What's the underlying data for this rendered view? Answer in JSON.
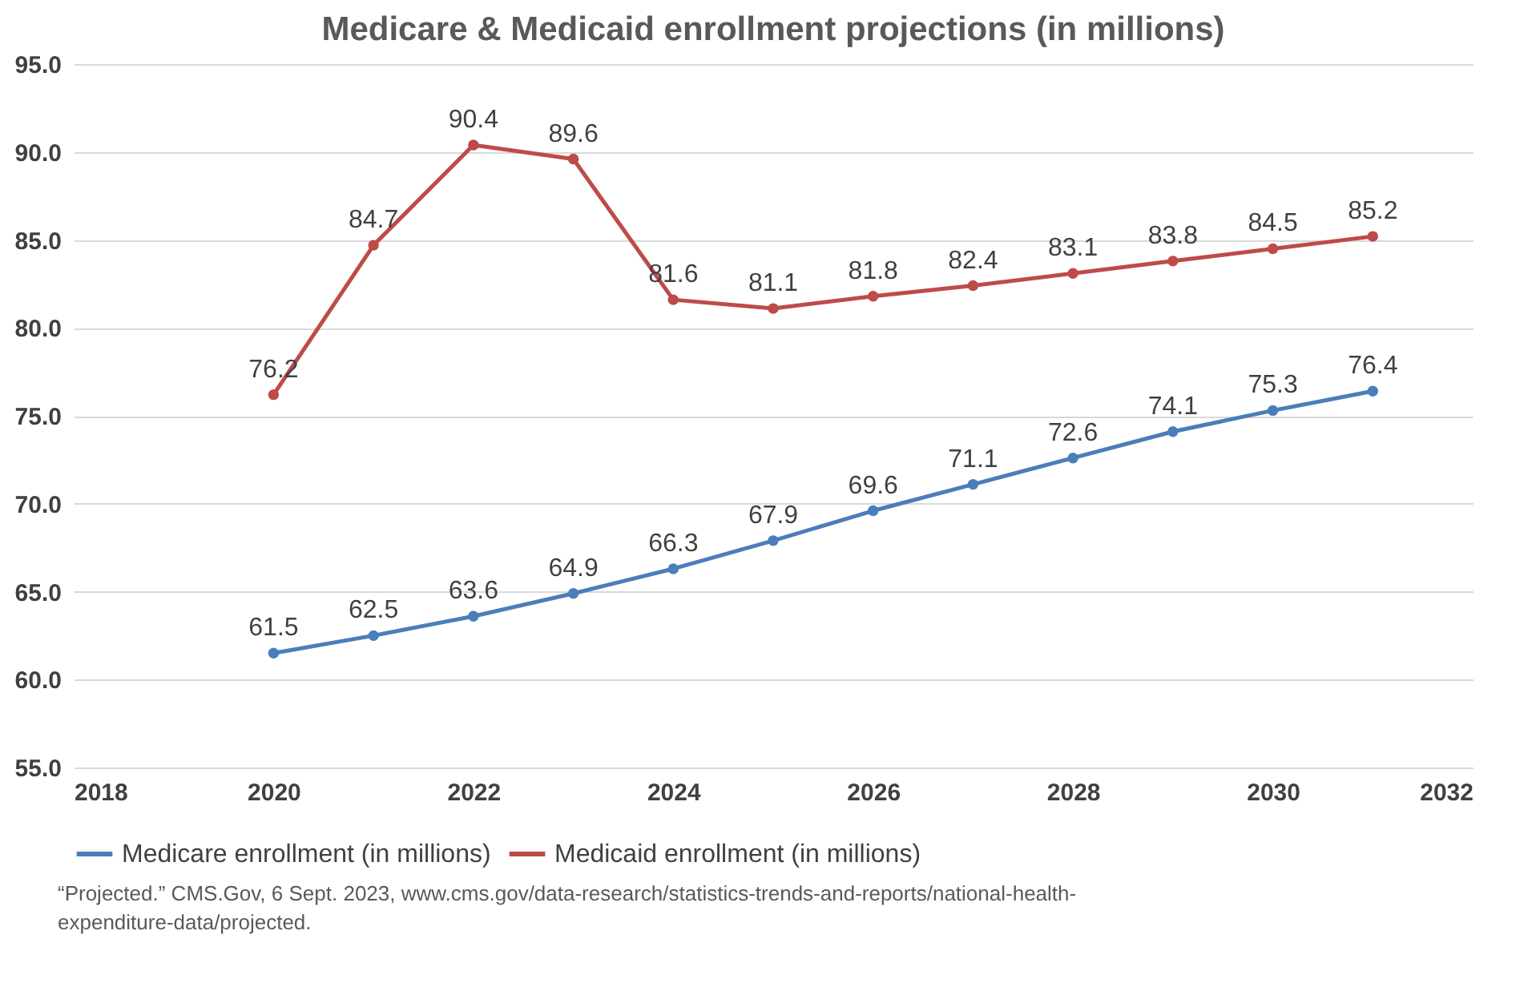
{
  "chart_data": {
    "type": "line",
    "title": "Medicare & Medicaid enrollment projections (in millions)",
    "x": [
      2020,
      2021,
      2022,
      2023,
      2024,
      2025,
      2026,
      2027,
      2028,
      2029,
      2030,
      2031
    ],
    "series": [
      {
        "name": "Medicare enrollment (in millions)",
        "color": "#4a7ebb",
        "values": [
          61.5,
          62.5,
          63.6,
          64.9,
          66.3,
          67.9,
          69.6,
          71.1,
          72.6,
          74.1,
          75.3,
          76.4
        ]
      },
      {
        "name": "Medicaid enrollment (in millions)",
        "color": "#be4b48",
        "values": [
          76.2,
          84.7,
          90.4,
          89.6,
          81.6,
          81.1,
          81.8,
          82.4,
          83.1,
          83.8,
          84.5,
          85.2
        ]
      }
    ],
    "xlim": [
      2018,
      2032
    ],
    "xticks": [
      2018,
      2020,
      2022,
      2024,
      2026,
      2028,
      2030,
      2032
    ],
    "ylim": [
      55,
      95
    ],
    "yticks": [
      {
        "value": 55,
        "label": "55.0"
      },
      {
        "value": 60,
        "label": "60.0"
      },
      {
        "value": 65,
        "label": "65.0"
      },
      {
        "value": 70,
        "label": "70.0"
      },
      {
        "value": 75,
        "label": "75.0"
      },
      {
        "value": 80,
        "label": "80.0"
      },
      {
        "value": 85,
        "label": "85.0"
      },
      {
        "value": 90,
        "label": "90.0"
      },
      {
        "value": 95,
        "label": "95.0"
      }
    ],
    "grid": "y",
    "legend": "bottom",
    "marker": "circle",
    "line_style": "solid",
    "data_labels": true,
    "annotations": [
      "“Projected.” CMS.Gov, 6 Sept. 2023, www.cms.gov/data-research/statistics-trends-and-reports/national-health-expenditure-data/projected."
    ]
  }
}
